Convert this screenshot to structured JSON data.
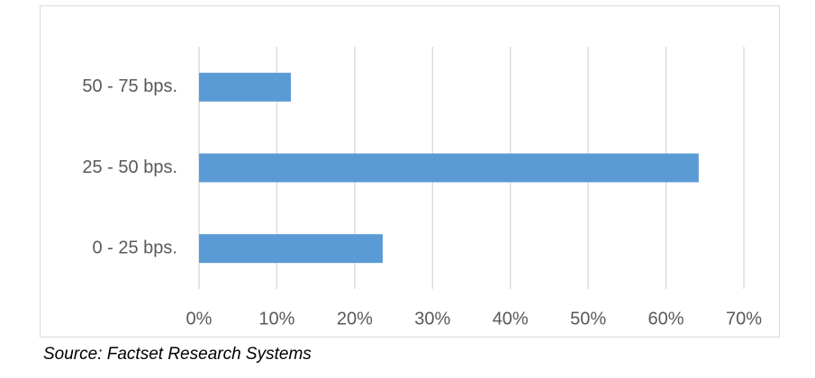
{
  "chart_data": {
    "type": "hbar",
    "categories": [
      "50 - 75 bps.",
      "25 - 50 bps.",
      "0 - 25 bps."
    ],
    "values": [
      11.8,
      64.2,
      23.6
    ],
    "color": "#5b9bd5",
    "xlim": [
      0,
      70
    ],
    "xticks": [
      {
        "value": 0,
        "label": "0%"
      },
      {
        "value": 10,
        "label": "10%"
      },
      {
        "value": 20,
        "label": "20%"
      },
      {
        "value": 30,
        "label": "30%"
      },
      {
        "value": 40,
        "label": "40%"
      },
      {
        "value": 50,
        "label": "50%"
      },
      {
        "value": 60,
        "label": "60%"
      },
      {
        "value": 70,
        "label": "70%"
      }
    ],
    "grid": true,
    "source": "Source: Factset Research Systems"
  }
}
